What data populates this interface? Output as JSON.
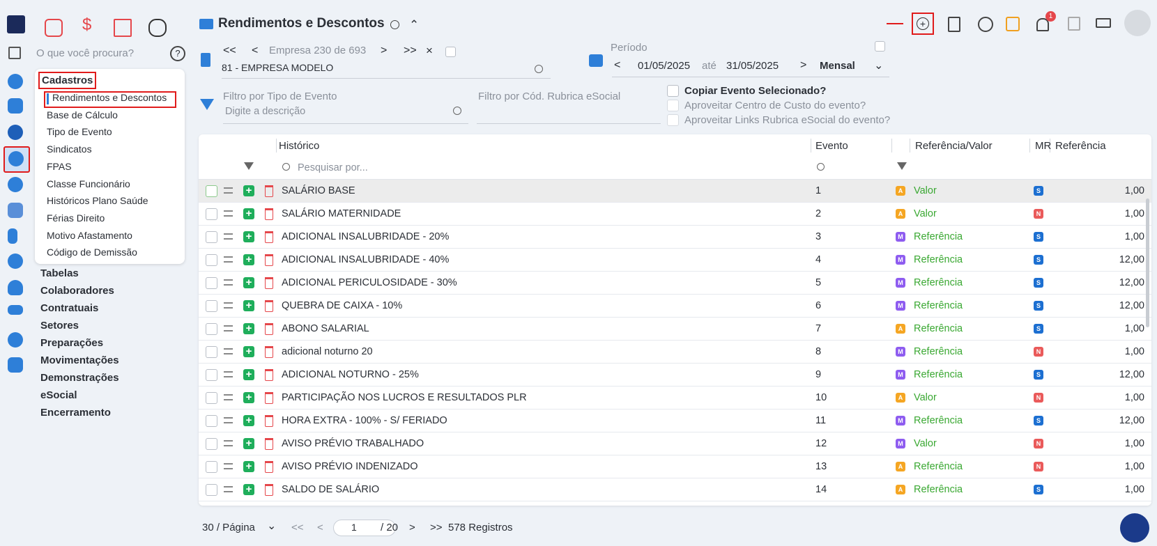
{
  "header": {
    "title": "Rendimentos e Descontos",
    "notification_count": "1"
  },
  "search_placeholder": "O que você procura?",
  "menu": {
    "open_section": "Cadastros",
    "open_items": [
      "Rendimentos e Descontos",
      "Base de Cálculo",
      "Tipo de Evento",
      "Sindicatos",
      "FPAS",
      "Classe Funcionário",
      "Históricos Plano Saúde",
      "Férias Direito",
      "Motivo Afastamento",
      "Código de Demissão"
    ],
    "sections": [
      "Tabelas",
      "Colaboradores",
      "Contratuais",
      "Setores",
      "Preparações",
      "Movimentações",
      "Demonstrações",
      "eSocial",
      "Encerramento"
    ]
  },
  "company": {
    "position": "Empresa 230 de 693",
    "name": "81 - EMPRESA MODELO"
  },
  "period": {
    "label": "Período",
    "start": "01/05/2025",
    "until": "até",
    "end": "31/05/2025",
    "mode": "Mensal"
  },
  "filters": {
    "event_type_label": "Filtro por Tipo de Evento",
    "event_type_placeholder": "Digite a descrição",
    "esocial_label": "Filtro por Cód. Rubrica eSocial"
  },
  "options": [
    "Copiar Evento Selecionado?",
    "Aproveitar Centro de Custo do evento?",
    "Aproveitar Links Rubrica eSocial do evento?"
  ],
  "table": {
    "columns": [
      "Histórico",
      "Evento",
      "Referência/Valor",
      "MR",
      "Referência"
    ],
    "search_placeholder": "Pesquisar por...",
    "badge_colors": {
      "A": "#f5a623",
      "M": "#8e5cf0",
      "S": "#1c6fd1",
      "N": "#ea5a5a"
    },
    "rows": [
      [
        "SALÁRIO BASE",
        "1",
        "A",
        "Valor",
        "S",
        "1,00"
      ],
      [
        "SALÁRIO MATERNIDADE",
        "2",
        "A",
        "Valor",
        "N",
        "1,00"
      ],
      [
        "ADICIONAL INSALUBRIDADE - 20%",
        "3",
        "M",
        "Referência",
        "S",
        "1,00"
      ],
      [
        "ADICIONAL INSALUBRIDADE - 40%",
        "4",
        "M",
        "Referência",
        "S",
        "12,00"
      ],
      [
        "ADICIONAL PERICULOSIDADE - 30%",
        "5",
        "M",
        "Referência",
        "S",
        "12,00"
      ],
      [
        "QUEBRA DE CAIXA - 10%",
        "6",
        "M",
        "Referência",
        "S",
        "12,00"
      ],
      [
        "ABONO SALARIAL",
        "7",
        "A",
        "Referência",
        "S",
        "1,00"
      ],
      [
        "adicional noturno 20",
        "8",
        "M",
        "Referência",
        "N",
        "1,00"
      ],
      [
        "ADICIONAL NOTURNO - 25%",
        "9",
        "M",
        "Referência",
        "S",
        "12,00"
      ],
      [
        "PARTICIPAÇÃO NOS LUCROS E RESULTADOS PLR",
        "10",
        "A",
        "Valor",
        "N",
        "1,00"
      ],
      [
        "HORA EXTRA - 100% - S/ FERIADO",
        "11",
        "M",
        "Referência",
        "S",
        "12,00"
      ],
      [
        "AVISO PRÉVIO TRABALHADO",
        "12",
        "M",
        "Valor",
        "N",
        "1,00"
      ],
      [
        "AVISO PRÉVIO INDENIZADO",
        "13",
        "A",
        "Referência",
        "N",
        "1,00"
      ],
      [
        "SALDO DE SALÁRIO",
        "14",
        "A",
        "Referência",
        "S",
        "1,00"
      ]
    ]
  },
  "pagination": {
    "page_size": "30 / Página",
    "page": "1",
    "total_pages": "/ 20",
    "records": "578 Registros"
  }
}
